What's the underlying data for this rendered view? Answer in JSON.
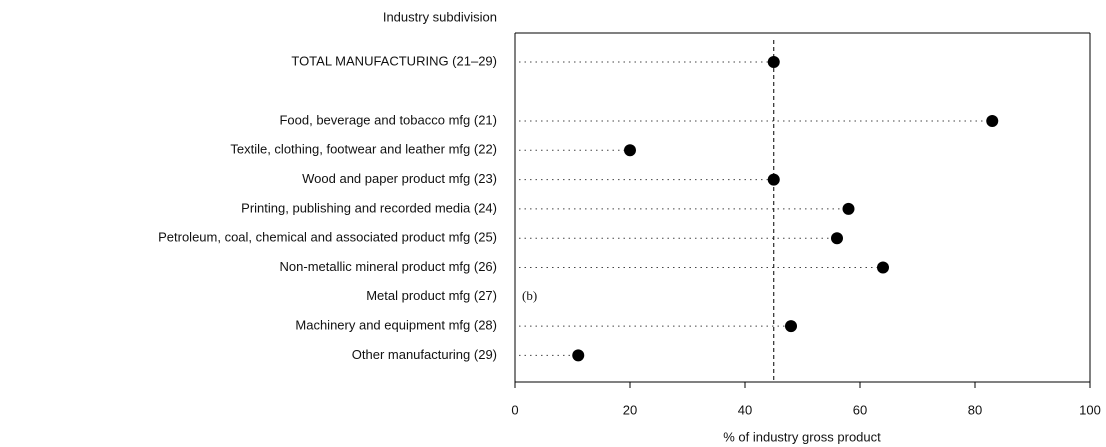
{
  "chart_data": {
    "type": "dot",
    "y_label": "Industry subdivision",
    "x_label": "% of industry gross product",
    "categories": [
      "TOTAL MANUFACTURING (21–29)",
      "Food, beverage and tobacco mfg (21)",
      "Textile, clothing, footwear and leather mfg (22)",
      "Wood and paper product mfg (23)",
      "Printing, publishing and recorded media (24)",
      "Petroleum, coal, chemical and associated product mfg (25)",
      "Non-metallic mineral product mfg (26)",
      "Metal product mfg (27)",
      "Machinery and equipment mfg (28)",
      "Other manufacturing (29)"
    ],
    "values": [
      45,
      83,
      20,
      45,
      58,
      56,
      64,
      null,
      48,
      11
    ],
    "value_labels": [
      null,
      null,
      null,
      null,
      null,
      null,
      null,
      "(b)",
      null,
      null
    ],
    "color": "#000000",
    "xlim": [
      0,
      100
    ],
    "xticks": [
      0,
      20,
      40,
      60,
      80,
      100
    ]
  }
}
